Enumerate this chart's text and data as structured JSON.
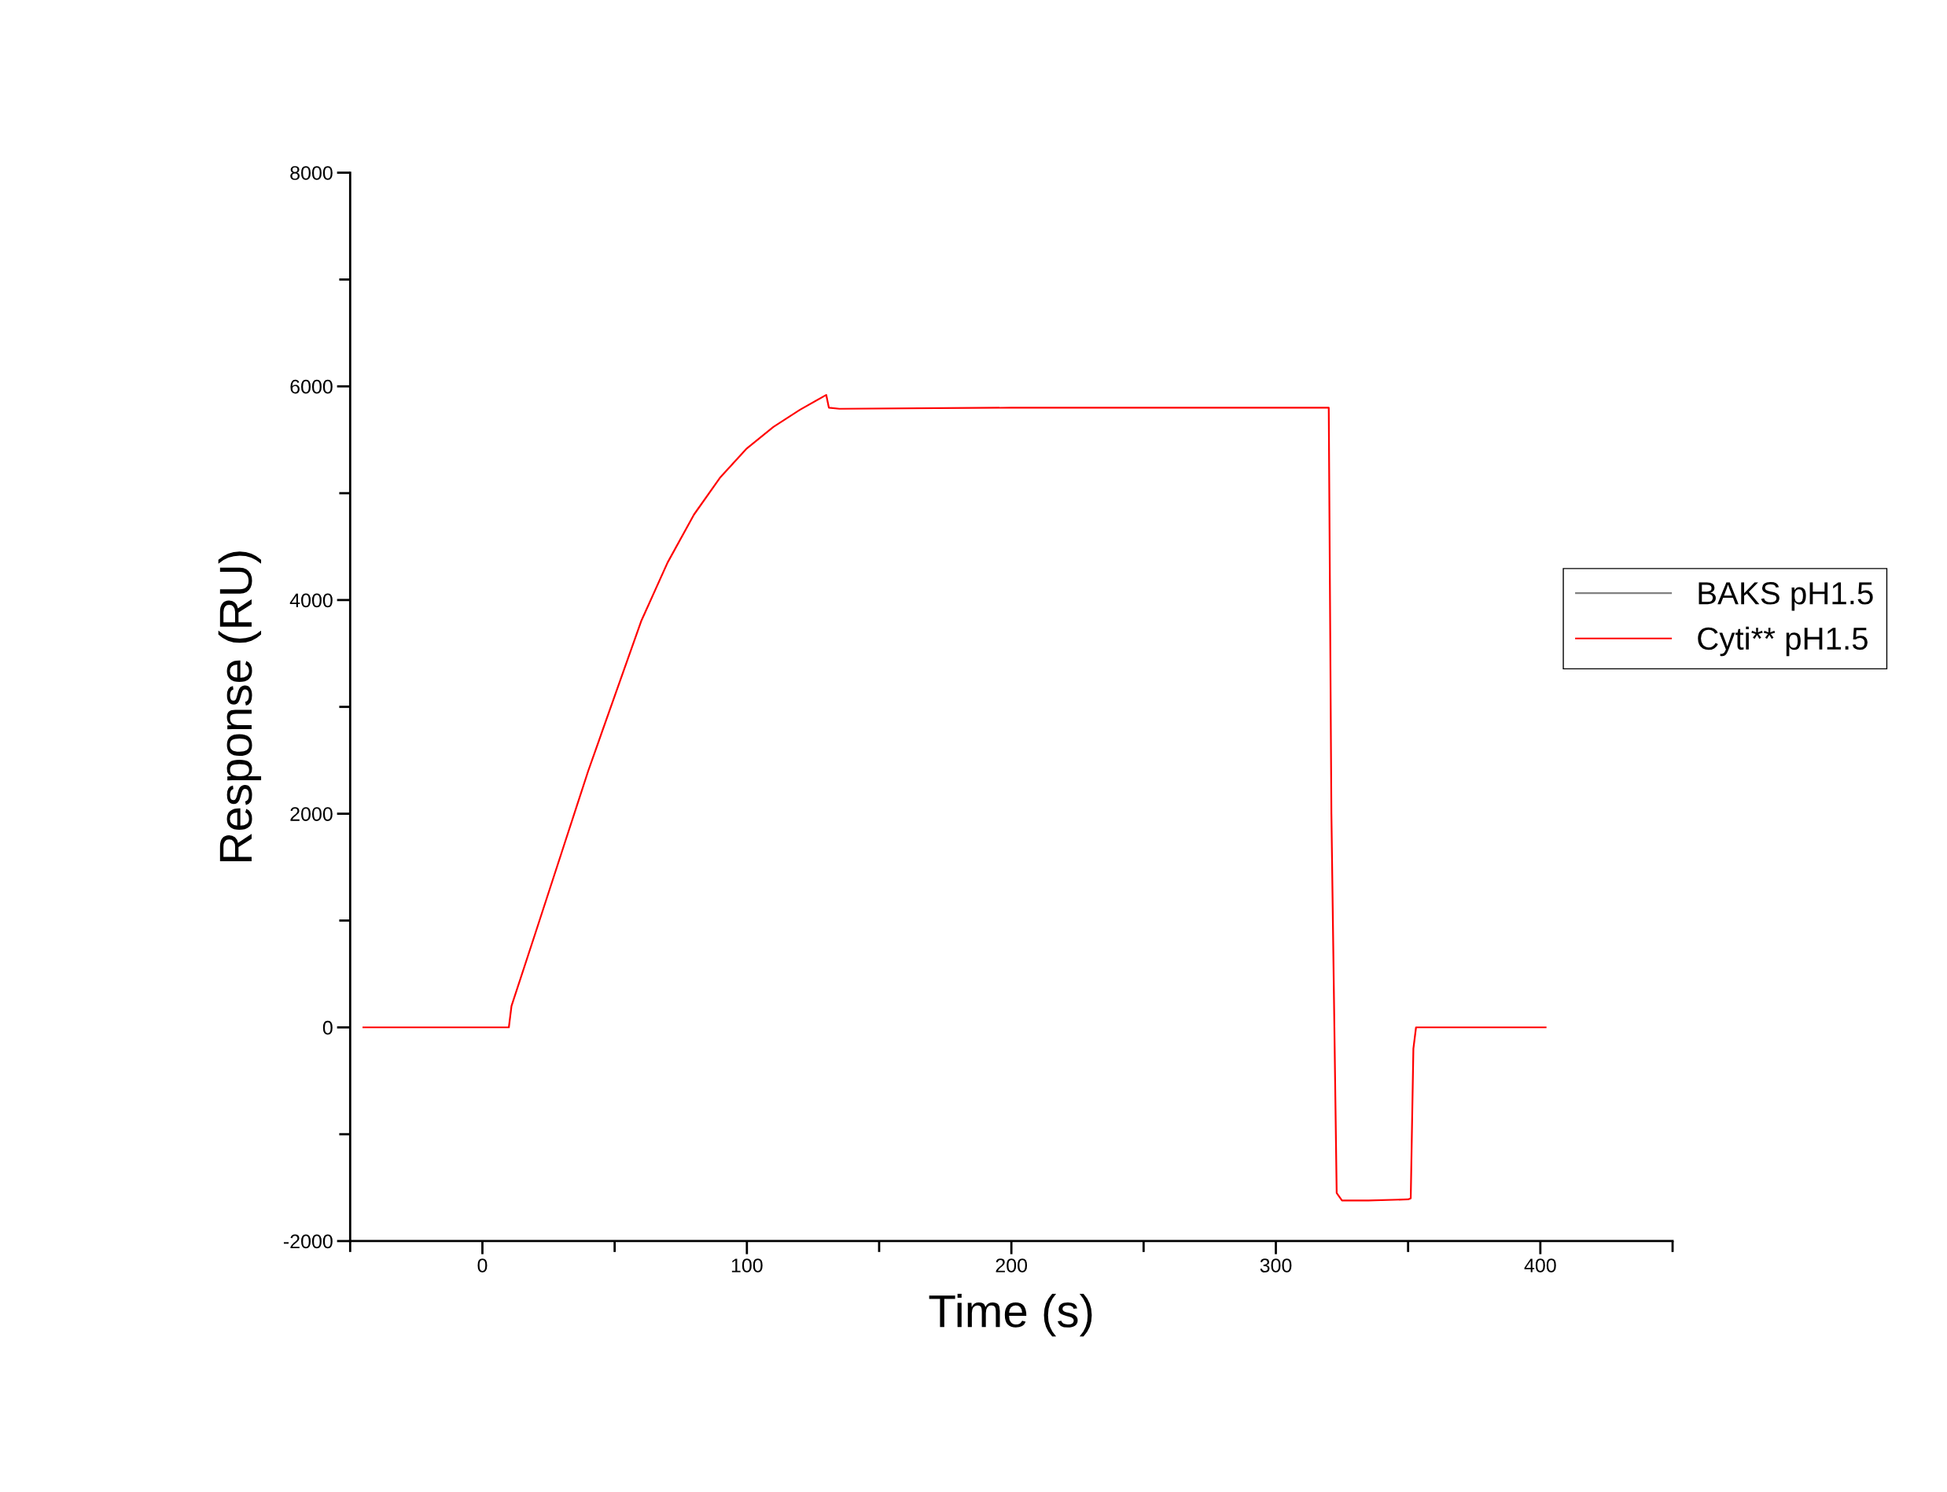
{
  "chart_data": {
    "type": "line",
    "xlabel": "Time (s)",
    "ylabel": "Response (RU)",
    "xlim": [
      -50,
      450
    ],
    "ylim": [
      -2000,
      8000
    ],
    "xticks": [
      {
        "value": -50,
        "label": null
      },
      0,
      {
        "value": 50,
        "label": null
      },
      100,
      {
        "value": 150,
        "label": null
      },
      200,
      {
        "value": 250,
        "label": null
      },
      300,
      {
        "value": 350,
        "label": null
      },
      400,
      {
        "value": 450,
        "label": null
      }
    ],
    "yticks": [
      -2000,
      {
        "value": -1000,
        "label": null
      },
      0,
      {
        "value": 1000,
        "label": null
      },
      2000,
      {
        "value": 3000,
        "label": null
      },
      4000,
      {
        "value": 5000,
        "label": null
      },
      6000,
      {
        "value": 7000,
        "label": null
      },
      8000
    ],
    "x": [
      -45,
      10,
      11,
      20,
      30,
      40,
      50,
      60,
      70,
      80,
      90,
      100,
      110,
      120,
      130,
      131,
      135,
      200,
      320,
      321,
      323,
      325,
      335,
      350,
      351,
      352,
      353,
      360,
      380,
      402
    ],
    "series": [
      {
        "name": "BAKS pH1.5",
        "color": "#808080",
        "values": [
          null,
          null,
          null,
          null,
          null,
          null,
          null,
          null,
          null,
          null,
          null,
          null,
          null,
          null,
          null,
          null,
          null,
          null,
          null,
          null,
          null,
          null,
          null,
          null,
          null,
          null,
          null,
          null,
          null,
          null
        ]
      },
      {
        "name": "Cyti** pH1.5",
        "color": "#ff0000",
        "values": [
          0,
          0,
          200,
          880,
          1640,
          2400,
          3100,
          3800,
          4350,
          4800,
          5150,
          5420,
          5620,
          5780,
          5920,
          5800,
          5790,
          5800,
          5800,
          2000,
          -1550,
          -1620,
          -1620,
          -1610,
          -1600,
          -200,
          0,
          0,
          0,
          0
        ]
      }
    ],
    "legend": "right",
    "grid": false
  }
}
